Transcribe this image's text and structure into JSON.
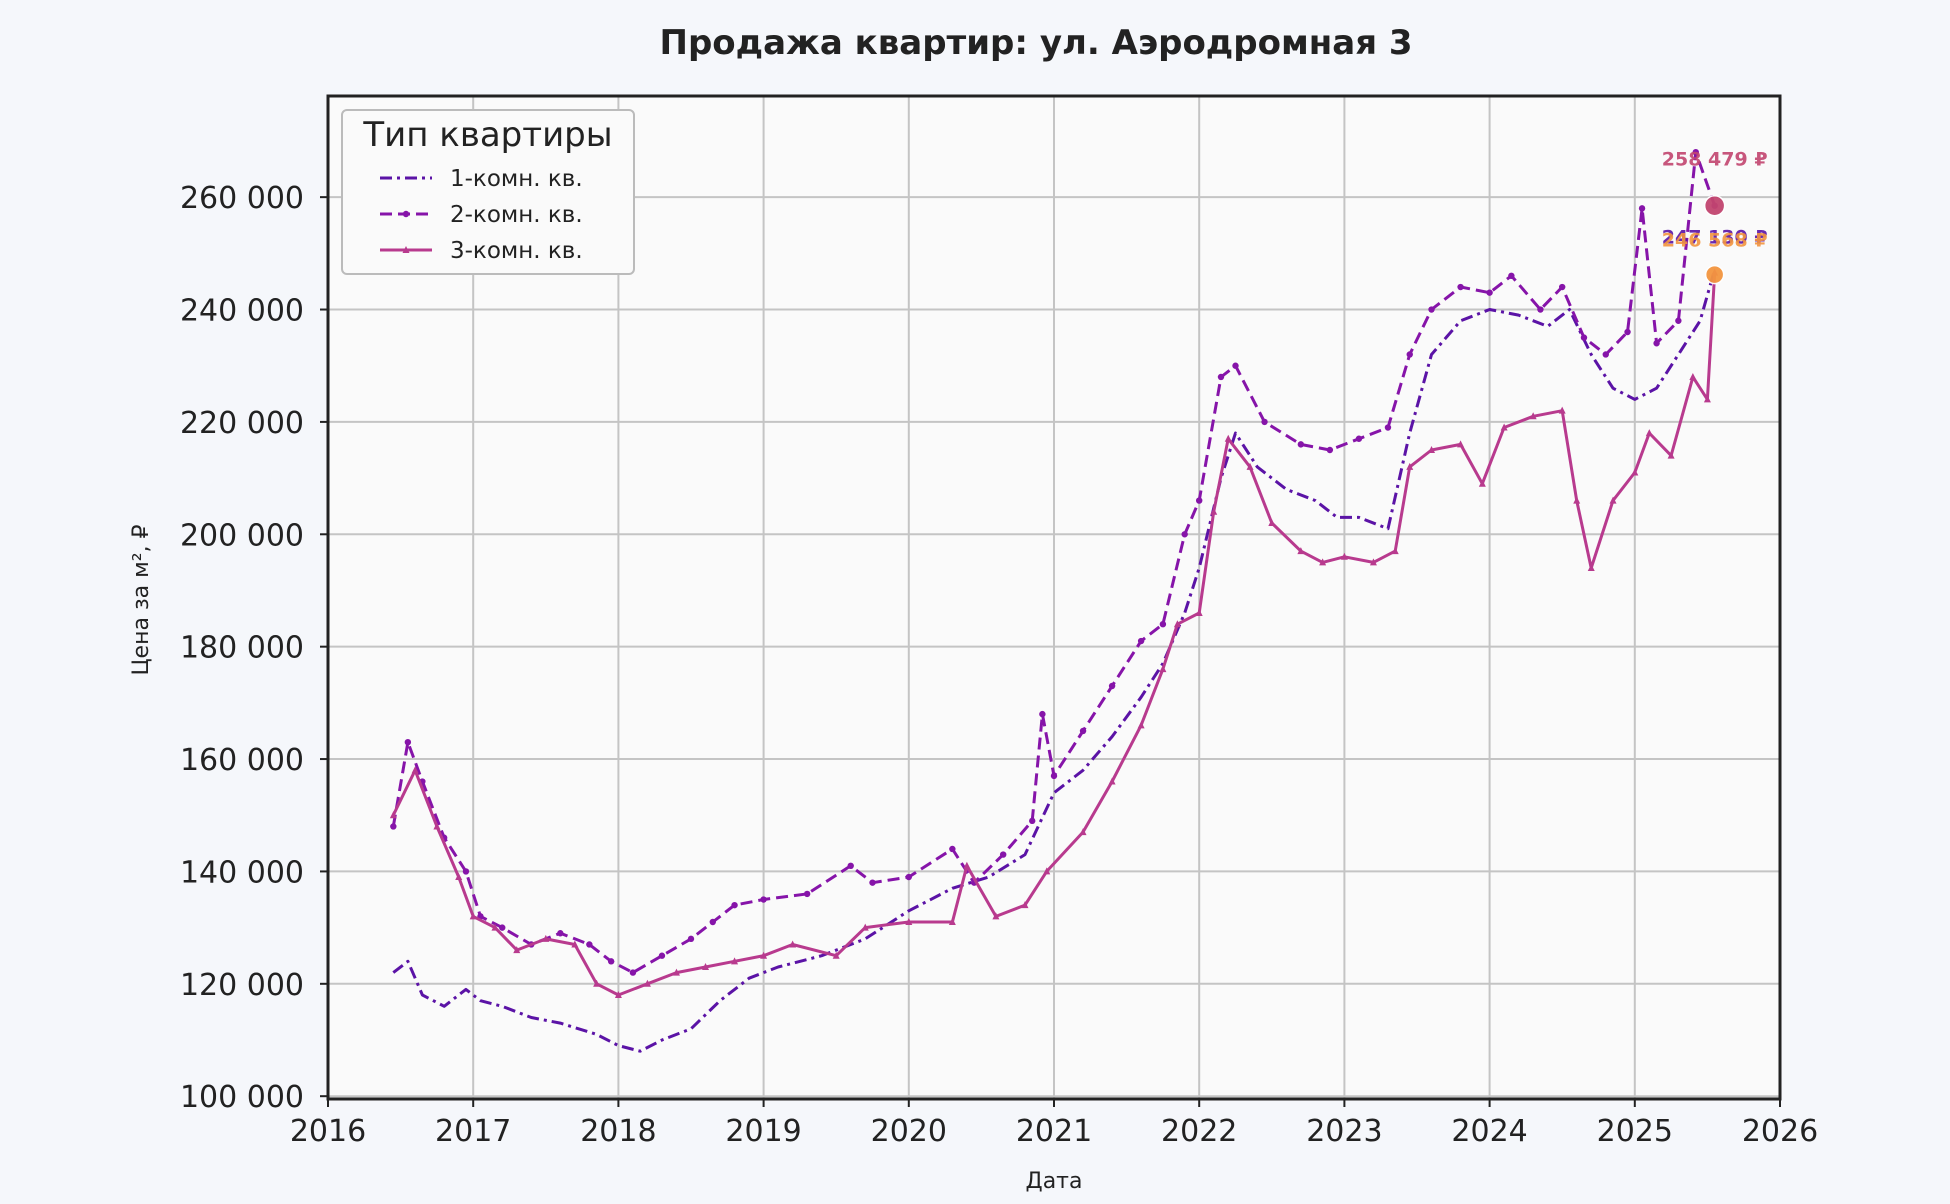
{
  "chart_data": {
    "type": "line",
    "title": "Продажа квартир: ул. Аэродромная 3",
    "xlabel": "Дата",
    "ylabel": "Цена за м², ₽",
    "xlim": [
      2016.0,
      2026.0
    ],
    "ylim": [
      99500,
      278000
    ],
    "x_ticks": [
      2016,
      2017,
      2018,
      2019,
      2020,
      2021,
      2022,
      2023,
      2024,
      2025,
      2026
    ],
    "x_tick_labels": [
      "2016",
      "2017",
      "2018",
      "2019",
      "2020",
      "2021",
      "2022",
      "2023",
      "2024",
      "2025",
      "2026"
    ],
    "y_ticks": [
      100000,
      120000,
      140000,
      160000,
      180000,
      200000,
      220000,
      240000,
      260000
    ],
    "y_tick_labels": [
      "100 000",
      "120 000",
      "140 000",
      "160 000",
      "180 000",
      "200 000",
      "220 000",
      "240 000",
      "260 000"
    ],
    "grid": true,
    "legend": {
      "title": "Тип квартиры",
      "placement": "top-left"
    },
    "series": [
      {
        "name": "1-комн. кв.",
        "color": "#5b13a6",
        "style": "dashdot",
        "marker": "none",
        "x": [
          2016.45,
          2016.55,
          2016.65,
          2016.8,
          2016.95,
          2017.05,
          2017.2,
          2017.4,
          2017.6,
          2017.85,
          2018.0,
          2018.15,
          2018.3,
          2018.5,
          2018.7,
          2018.9,
          2019.1,
          2019.4,
          2019.7,
          2020.0,
          2020.3,
          2020.55,
          2020.8,
          2021.0,
          2021.2,
          2021.4,
          2021.6,
          2021.75,
          2021.9,
          2022.0,
          2022.15,
          2022.25,
          2022.4,
          2022.6,
          2022.8,
          2022.95,
          2023.1,
          2023.3,
          2023.45,
          2023.6,
          2023.8,
          2024.0,
          2024.2,
          2024.4,
          2024.55,
          2024.7,
          2024.85,
          2025.0,
          2025.15,
          2025.3,
          2025.45,
          2025.55
        ],
        "y": [
          122000,
          124000,
          118000,
          116000,
          119000,
          117000,
          116000,
          114000,
          113000,
          111000,
          109000,
          108000,
          110000,
          112000,
          117000,
          121000,
          123000,
          125000,
          128000,
          133000,
          137000,
          139000,
          143000,
          154000,
          158000,
          164000,
          171000,
          177000,
          186000,
          194000,
          210000,
          218000,
          212000,
          208000,
          206000,
          203000,
          203000,
          201000,
          218000,
          232000,
          238000,
          240000,
          239000,
          237000,
          240000,
          232000,
          226000,
          224000,
          226000,
          232000,
          238000,
          247130
        ]
      },
      {
        "name": "2-комн. кв.",
        "color": "#8614a9",
        "style": "dashed",
        "marker": "dot",
        "x": [
          2016.45,
          2016.55,
          2016.65,
          2016.8,
          2016.95,
          2017.05,
          2017.2,
          2017.4,
          2017.6,
          2017.8,
          2017.95,
          2018.1,
          2018.3,
          2018.5,
          2018.65,
          2018.8,
          2019.0,
          2019.3,
          2019.6,
          2019.75,
          2020.0,
          2020.3,
          2020.45,
          2020.65,
          2020.85,
          2020.92,
          2021.0,
          2021.2,
          2021.4,
          2021.6,
          2021.75,
          2021.9,
          2022.0,
          2022.15,
          2022.25,
          2022.45,
          2022.7,
          2022.9,
          2023.1,
          2023.3,
          2023.45,
          2023.6,
          2023.8,
          2024.0,
          2024.15,
          2024.35,
          2024.5,
          2024.65,
          2024.8,
          2024.95,
          2025.05,
          2025.15,
          2025.3,
          2025.42,
          2025.55
        ],
        "y": [
          148000,
          163000,
          156000,
          146000,
          140000,
          132000,
          130000,
          127000,
          129000,
          127000,
          124000,
          122000,
          125000,
          128000,
          131000,
          134000,
          135000,
          136000,
          141000,
          138000,
          139000,
          144000,
          138000,
          143000,
          149000,
          168000,
          157000,
          165000,
          173000,
          181000,
          184000,
          200000,
          206000,
          228000,
          230000,
          220000,
          216000,
          215000,
          217000,
          219000,
          232000,
          240000,
          244000,
          243000,
          246000,
          240000,
          244000,
          235000,
          232000,
          236000,
          258000,
          234000,
          238000,
          268000,
          258479
        ]
      },
      {
        "name": "3-комн. кв.",
        "color": "#b83a8e",
        "style": "solid",
        "marker": "triangle",
        "x": [
          2016.45,
          2016.6,
          2016.75,
          2016.9,
          2017.0,
          2017.15,
          2017.3,
          2017.5,
          2017.7,
          2017.85,
          2018.0,
          2018.2,
          2018.4,
          2018.6,
          2018.8,
          2019.0,
          2019.2,
          2019.5,
          2019.7,
          2020.0,
          2020.3,
          2020.4,
          2020.6,
          2020.8,
          2020.95,
          2021.2,
          2021.4,
          2021.6,
          2021.75,
          2021.85,
          2022.0,
          2022.1,
          2022.2,
          2022.35,
          2022.5,
          2022.7,
          2022.85,
          2023.0,
          2023.2,
          2023.35,
          2023.45,
          2023.6,
          2023.8,
          2023.95,
          2024.1,
          2024.3,
          2024.5,
          2024.6,
          2024.7,
          2024.85,
          2025.0,
          2025.1,
          2025.25,
          2025.4,
          2025.5,
          2025.55
        ],
        "y": [
          150000,
          158000,
          148000,
          139000,
          132000,
          130000,
          126000,
          128000,
          127000,
          120000,
          118000,
          120000,
          122000,
          123000,
          124000,
          125000,
          127000,
          125000,
          130000,
          131000,
          131000,
          141000,
          132000,
          134000,
          140000,
          147000,
          156000,
          166000,
          176000,
          184000,
          186000,
          204000,
          217000,
          212000,
          202000,
          197000,
          195000,
          196000,
          195000,
          197000,
          212000,
          215000,
          216000,
          209000,
          219000,
          221000,
          222000,
          206000,
          194000,
          206000,
          211000,
          218000,
          214000,
          228000,
          224000,
          246568
        ]
      }
    ],
    "annotations": [
      {
        "label": "258 479 ₽",
        "x": 2025.55,
        "y": 258479,
        "color": "#c2456f",
        "marker": "circle"
      },
      {
        "label": "247 130 ₽",
        "x": 2025.55,
        "y": 247130,
        "color": "#5b13a6",
        "marker": "none"
      },
      {
        "label": "246 568 ₽",
        "x": 2025.55,
        "y": 246568,
        "color": "#f3953f",
        "marker": "circle"
      }
    ]
  }
}
